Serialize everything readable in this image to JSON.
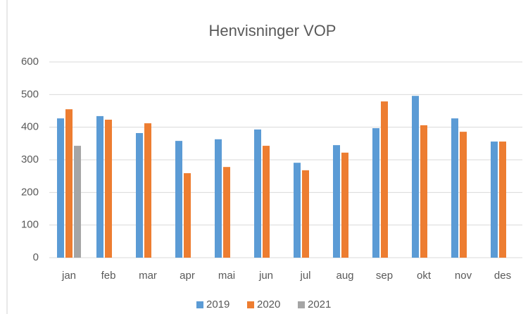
{
  "chart_data": {
    "type": "bar",
    "title": "Henvisninger VOP",
    "categories": [
      "jan",
      "feb",
      "mar",
      "apr",
      "mai",
      "jun",
      "jul",
      "aug",
      "sep",
      "okt",
      "nov",
      "des"
    ],
    "series": [
      {
        "name": "2019",
        "color": "#5b9bd5",
        "values": [
          427,
          434,
          382,
          358,
          363,
          393,
          291,
          345,
          397,
          496,
          427,
          356
        ]
      },
      {
        "name": "2020",
        "color": "#ed7d31",
        "values": [
          455,
          423,
          412,
          259,
          278,
          343,
          268,
          322,
          479,
          406,
          386,
          356
        ]
      },
      {
        "name": "2021",
        "color": "#a5a5a5",
        "values": [
          343,
          null,
          null,
          null,
          null,
          null,
          null,
          null,
          null,
          null,
          null,
          null
        ]
      }
    ],
    "ylim": [
      0,
      600
    ],
    "yticks": [
      0,
      100,
      200,
      300,
      400,
      500,
      600
    ],
    "grid": true,
    "legend": "bottom"
  }
}
